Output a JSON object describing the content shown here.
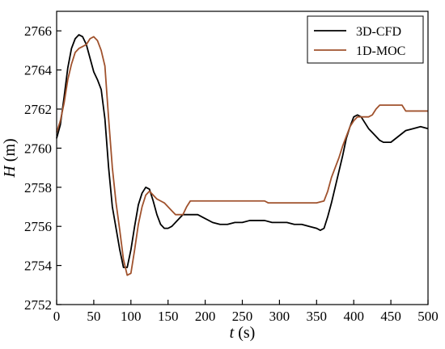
{
  "chart_data": {
    "type": "line",
    "title": "",
    "xlabel": "t (s)",
    "ylabel": "H (m)",
    "xlabel_var": "t",
    "xlabel_unit": " (s)",
    "ylabel_var": "H",
    "ylabel_unit": " (m)",
    "xlim": [
      0,
      500
    ],
    "ylim": [
      2752,
      2767
    ],
    "xticks": [
      0,
      50,
      100,
      150,
      200,
      250,
      300,
      350,
      400,
      450,
      500
    ],
    "yticks": [
      2752,
      2754,
      2756,
      2758,
      2760,
      2762,
      2764,
      2766
    ],
    "grid": false,
    "legend_position": "top-right",
    "series": [
      {
        "name": "3D-CFD",
        "color": "#000000",
        "x": [
          0,
          5,
          10,
          15,
          20,
          25,
          30,
          35,
          40,
          45,
          50,
          55,
          60,
          65,
          70,
          75,
          80,
          85,
          90,
          95,
          100,
          105,
          110,
          115,
          120,
          125,
          130,
          135,
          140,
          145,
          150,
          155,
          160,
          165,
          170,
          180,
          190,
          200,
          210,
          220,
          230,
          240,
          250,
          260,
          270,
          280,
          290,
          300,
          310,
          320,
          330,
          340,
          350,
          355,
          360,
          365,
          370,
          375,
          380,
          385,
          390,
          395,
          400,
          405,
          410,
          415,
          420,
          425,
          430,
          435,
          440,
          445,
          450,
          460,
          470,
          480,
          490,
          500
        ],
        "y": [
          2760.5,
          2761.2,
          2762.6,
          2764.1,
          2765.1,
          2765.6,
          2765.8,
          2765.7,
          2765.3,
          2764.6,
          2763.9,
          2763.5,
          2763.0,
          2761.5,
          2759.0,
          2757.0,
          2755.9,
          2754.8,
          2753.9,
          2753.9,
          2754.8,
          2756.0,
          2757.1,
          2757.7,
          2758.0,
          2757.9,
          2757.3,
          2756.6,
          2756.1,
          2755.9,
          2755.9,
          2756.0,
          2756.2,
          2756.4,
          2756.6,
          2756.6,
          2756.6,
          2756.4,
          2756.2,
          2756.1,
          2756.1,
          2756.2,
          2756.2,
          2756.3,
          2756.3,
          2756.3,
          2756.2,
          2756.2,
          2756.2,
          2756.1,
          2756.1,
          2756.0,
          2755.9,
          2755.8,
          2755.9,
          2756.5,
          2757.2,
          2758.0,
          2758.8,
          2759.6,
          2760.5,
          2761.1,
          2761.6,
          2761.7,
          2761.6,
          2761.3,
          2761.0,
          2760.8,
          2760.6,
          2760.4,
          2760.3,
          2760.3,
          2760.3,
          2760.6,
          2760.9,
          2761.0,
          2761.1,
          2761.0
        ]
      },
      {
        "name": "1D-MOC",
        "color": "#a0522d",
        "x": [
          0,
          5,
          10,
          15,
          20,
          25,
          30,
          35,
          40,
          45,
          50,
          55,
          60,
          65,
          70,
          75,
          80,
          85,
          90,
          95,
          100,
          105,
          110,
          115,
          120,
          125,
          130,
          135,
          140,
          145,
          150,
          155,
          160,
          165,
          170,
          175,
          180,
          185,
          190,
          200,
          250,
          280,
          285,
          290,
          350,
          360,
          365,
          370,
          375,
          380,
          385,
          390,
          395,
          400,
          405,
          410,
          420,
          425,
          430,
          435,
          440,
          445,
          450,
          460,
          465,
          470,
          480,
          490,
          500
        ],
        "y": [
          2760.8,
          2761.4,
          2762.3,
          2763.5,
          2764.3,
          2764.9,
          2765.1,
          2765.2,
          2765.3,
          2765.6,
          2765.7,
          2765.5,
          2765.0,
          2764.2,
          2761.5,
          2759.0,
          2757.2,
          2755.8,
          2754.3,
          2753.5,
          2753.6,
          2754.8,
          2756.1,
          2757.0,
          2757.6,
          2757.8,
          2757.6,
          2757.4,
          2757.3,
          2757.2,
          2757.0,
          2756.8,
          2756.6,
          2756.6,
          2756.6,
          2757.0,
          2757.3,
          2757.3,
          2757.3,
          2757.3,
          2757.3,
          2757.3,
          2757.2,
          2757.2,
          2757.2,
          2757.3,
          2757.8,
          2758.5,
          2759.0,
          2759.5,
          2760.1,
          2760.6,
          2761.1,
          2761.4,
          2761.6,
          2761.6,
          2761.6,
          2761.7,
          2762.0,
          2762.2,
          2762.2,
          2762.2,
          2762.2,
          2762.2,
          2762.2,
          2761.9,
          2761.9,
          2761.9,
          2761.9
        ]
      }
    ]
  }
}
